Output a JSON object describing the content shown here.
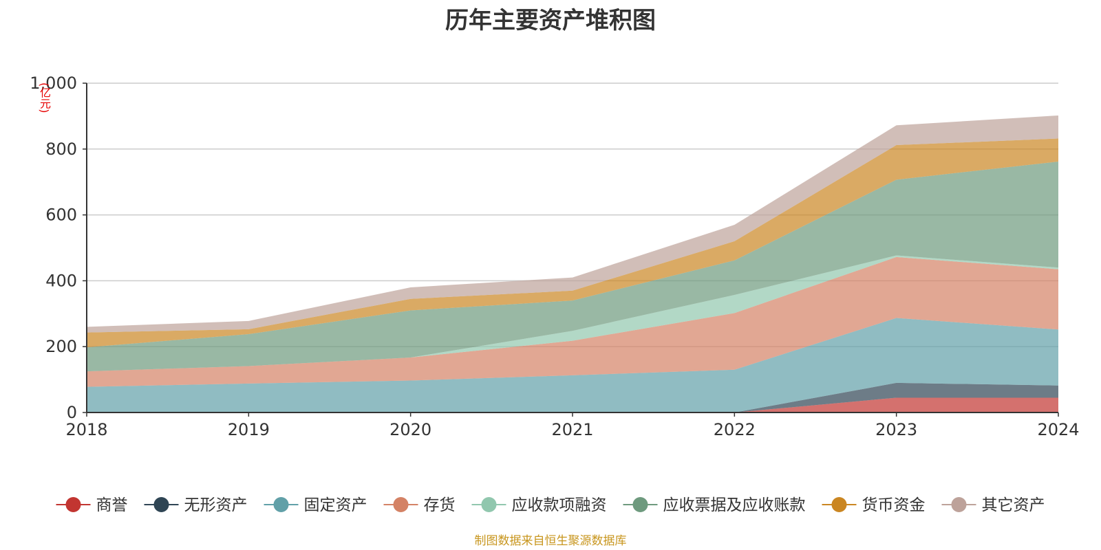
{
  "chart_data": {
    "type": "area",
    "stacked": true,
    "title": "历年主要资产堆积图",
    "unit": "(亿元)",
    "x": [
      "2018",
      "2019",
      "2020",
      "2021",
      "2022",
      "2023",
      "2024"
    ],
    "ylim": [
      0,
      1000
    ],
    "yticks": [
      "0",
      "200",
      "400",
      "600",
      "800",
      "1,000"
    ],
    "ytick_values": [
      0,
      200,
      400,
      600,
      800,
      1000
    ],
    "grid": true,
    "legend_position": "bottom",
    "series": [
      {
        "name": "商誉",
        "color": "#c23531",
        "values": [
          0,
          0,
          0,
          0,
          0,
          45,
          45
        ]
      },
      {
        "name": "无形资产",
        "color": "#2f4554",
        "values": [
          0,
          0,
          0,
          0,
          0,
          45,
          37
        ]
      },
      {
        "name": "固定资产",
        "color": "#61a0a8",
        "values": [
          78,
          88,
          97,
          113,
          130,
          197,
          170
        ]
      },
      {
        "name": "存货",
        "color": "#d48265",
        "values": [
          47,
          53,
          70,
          105,
          172,
          185,
          183
        ]
      },
      {
        "name": "应收款项融资",
        "color": "#91c7ae",
        "values": [
          0,
          0,
          0,
          30,
          55,
          5,
          5
        ]
      },
      {
        "name": "应收票据及应收账款",
        "color": "#6e9a7e",
        "values": [
          73,
          97,
          143,
          92,
          105,
          230,
          322
        ]
      },
      {
        "name": "货币资金",
        "color": "#ca8622",
        "values": [
          45,
          15,
          35,
          30,
          58,
          105,
          70
        ]
      },
      {
        "name": "其它资产",
        "color": "#bda29a",
        "values": [
          17,
          25,
          35,
          40,
          50,
          60,
          70
        ]
      }
    ]
  },
  "footer": {
    "source": "制图数据来自恒生聚源数据库"
  }
}
